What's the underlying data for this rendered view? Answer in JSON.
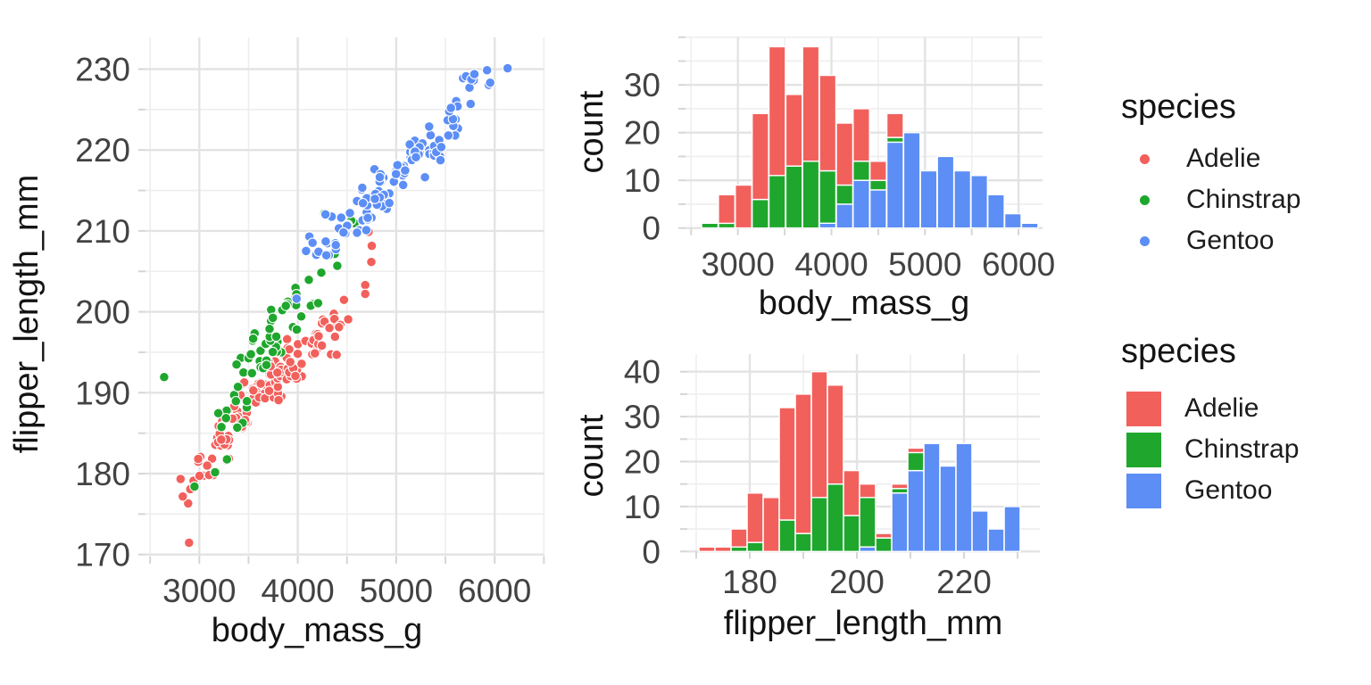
{
  "palette": {
    "adelie": "#F2605C",
    "chinstrap": "#1FA72D",
    "gentoo": "#5C8EF5",
    "grid_major": "#E3E3E3",
    "grid_minor": "#EEEEEE",
    "tick_mark": "#D6D6D6",
    "tick_text": "#424242",
    "title_text": "#131313",
    "background": "#FFFFFF",
    "bar_stroke": "#FFFFFF",
    "point_stroke": "#FFFFFF"
  },
  "legends": [
    {
      "title": "species",
      "marker": "point",
      "items": [
        {
          "label": "Adelie",
          "color": "#F2605C"
        },
        {
          "label": "Chinstrap",
          "color": "#1FA72D"
        },
        {
          "label": "Gentoo",
          "color": "#5C8EF5"
        }
      ]
    },
    {
      "title": "species",
      "marker": "square",
      "items": [
        {
          "label": "Adelie",
          "color": "#F2605C"
        },
        {
          "label": "Chinstrap",
          "color": "#1FA72D"
        },
        {
          "label": "Gentoo",
          "color": "#5C8EF5"
        }
      ]
    }
  ],
  "chart_data": [
    {
      "id": "scatter",
      "type": "scatter",
      "xlabel": "body_mass_g",
      "ylabel": "flipper_length_mm",
      "xlim": [
        2455,
        6500
      ],
      "ylim": [
        169.2,
        233.9
      ],
      "x_ticks": [
        3000,
        4000,
        5000,
        6000
      ],
      "x_minor_ticks": [
        2500,
        3500,
        4500,
        5500,
        6500
      ],
      "y_ticks": [
        170,
        180,
        190,
        200,
        210,
        220,
        230
      ],
      "y_minor_ticks": [
        175,
        185,
        195,
        205,
        215,
        225
      ],
      "grid": true,
      "legend_position": "right",
      "note": "points_grouped entries are [body_mass_g_bin_center, flipper_length_mm_bin_center, n_points]",
      "series": [
        {
          "name": "Adelie",
          "color": "#F2605C",
          "points_grouped": [
            [
              2880,
              172,
              1
            ],
            [
              2880,
              175,
              1
            ],
            [
              2880,
              178,
              4
            ],
            [
              3060,
              181,
              9
            ],
            [
              3240,
              181,
              2
            ],
            [
              3240,
              184,
              12
            ],
            [
              3240,
              187,
              4
            ],
            [
              3420,
              187,
              21
            ],
            [
              3420,
              190,
              5
            ],
            [
              3600,
              190,
              15
            ],
            [
              3780,
              190,
              11
            ],
            [
              3780,
              193,
              13
            ],
            [
              3960,
              193,
              15
            ],
            [
              3960,
              196,
              5
            ],
            [
              4140,
              196,
              13
            ],
            [
              4320,
              196,
              4
            ],
            [
              4320,
              199,
              7
            ],
            [
              4500,
              199,
              3
            ],
            [
              4500,
              202,
              1
            ],
            [
              4680,
              202,
              2
            ],
            [
              4680,
              205,
              1
            ],
            [
              4680,
              208,
              1
            ],
            [
              4680,
              211,
              1
            ]
          ]
        },
        {
          "name": "Chinstrap",
          "color": "#1FA72D",
          "points_grouped": [
            [
              2700,
              192,
              1
            ],
            [
              2880,
              178,
              1
            ],
            [
              3240,
              181,
              2
            ],
            [
              3240,
              187,
              4
            ],
            [
              3420,
              187,
              3
            ],
            [
              3420,
              190,
              4
            ],
            [
              3420,
              193,
              4
            ],
            [
              3600,
              193,
              7
            ],
            [
              3600,
              196,
              6
            ],
            [
              3780,
              196,
              9
            ],
            [
              3780,
              199,
              5
            ],
            [
              3960,
              199,
              3
            ],
            [
              3960,
              202,
              8
            ],
            [
              4140,
              202,
              3
            ],
            [
              4140,
              205,
              1
            ],
            [
              4320,
              205,
              2
            ],
            [
              4320,
              208,
              1
            ],
            [
              4320,
              211,
              1
            ],
            [
              4500,
              211,
              2
            ],
            [
              4680,
              211,
              1
            ]
          ]
        },
        {
          "name": "Gentoo",
          "color": "#5C8EF5",
          "points_grouped": [
            [
              3960,
              202,
              1
            ],
            [
              4140,
              208,
              5
            ],
            [
              4320,
              208,
              8
            ],
            [
              4320,
              211,
              2
            ],
            [
              4500,
              211,
              8
            ],
            [
              4680,
              211,
              8
            ],
            [
              4680,
              214,
              10
            ],
            [
              4860,
              214,
              14
            ],
            [
              4860,
              217,
              6
            ],
            [
              5040,
              217,
              12
            ],
            [
              5220,
              217,
              1
            ],
            [
              5220,
              220,
              14
            ],
            [
              5400,
              220,
              10
            ],
            [
              5400,
              223,
              2
            ],
            [
              5580,
              223,
              7
            ],
            [
              5580,
              226,
              4
            ],
            [
              5760,
              226,
              1
            ],
            [
              5760,
              229,
              6
            ],
            [
              5940,
              229,
              3
            ],
            [
              6120,
              229,
              1
            ]
          ]
        }
      ]
    },
    {
      "id": "hist_body_mass",
      "type": "bar",
      "subtype": "stacked_histogram",
      "xlabel": "body_mass_g",
      "ylabel": "count",
      "bin_width": 180,
      "bin_centers": [
        2700,
        2880,
        3060,
        3240,
        3420,
        3600,
        3780,
        3960,
        4140,
        4320,
        4500,
        4680,
        4860,
        5040,
        5220,
        5400,
        5580,
        5760,
        5940,
        6120
      ],
      "x_ticks": [
        3000,
        4000,
        5000,
        6000
      ],
      "x_minor_ticks": [
        2500,
        3500,
        4500,
        5500
      ],
      "y_ticks": [
        0,
        10,
        20,
        30
      ],
      "y_minor_ticks": [
        5,
        15,
        25,
        35,
        40
      ],
      "ylim": [
        0,
        39.9
      ],
      "stack_bottom_to_top": [
        "Gentoo",
        "Chinstrap",
        "Adelie"
      ],
      "series": [
        {
          "name": "Adelie",
          "color": "#F2605C",
          "counts": [
            0,
            6,
            9,
            18,
            27,
            15,
            24,
            20,
            13,
            11,
            4,
            5,
            0,
            0,
            0,
            0,
            0,
            0,
            0,
            0
          ]
        },
        {
          "name": "Chinstrap",
          "color": "#1FA72D",
          "counts": [
            1,
            1,
            0,
            6,
            11,
            13,
            14,
            11,
            4,
            4,
            2,
            1,
            0,
            0,
            0,
            0,
            0,
            0,
            0,
            0
          ]
        },
        {
          "name": "Gentoo",
          "color": "#5C8EF5",
          "counts": [
            0,
            0,
            0,
            0,
            0,
            0,
            0,
            1,
            5,
            10,
            8,
            18,
            20,
            12,
            15,
            12,
            11,
            7,
            3,
            1
          ]
        }
      ]
    },
    {
      "id": "hist_flipper_length",
      "type": "bar",
      "subtype": "stacked_histogram",
      "xlabel": "flipper_length_mm",
      "ylabel": "count",
      "bin_width": 3,
      "bin_centers": [
        172,
        175,
        178,
        181,
        184,
        187,
        190,
        193,
        196,
        199,
        202,
        205,
        208,
        211,
        214,
        217,
        220,
        223,
        226,
        229
      ],
      "x_ticks": [
        180,
        200,
        220
      ],
      "x_minor_ticks": [
        170,
        190,
        210,
        230
      ],
      "y_ticks": [
        0,
        10,
        20,
        30,
        40
      ],
      "y_minor_ticks": [
        5,
        15,
        25,
        35
      ],
      "ylim": [
        0,
        42
      ],
      "stack_bottom_to_top": [
        "Gentoo",
        "Chinstrap",
        "Adelie"
      ],
      "series": [
        {
          "name": "Adelie",
          "color": "#F2605C",
          "counts": [
            1,
            1,
            4,
            11,
            12,
            25,
            31,
            28,
            22,
            10,
            3,
            1,
            1,
            1,
            0,
            0,
            0,
            0,
            0,
            0
          ]
        },
        {
          "name": "Chinstrap",
          "color": "#1FA72D",
          "counts": [
            0,
            0,
            1,
            2,
            0,
            7,
            4,
            12,
            15,
            8,
            11,
            3,
            1,
            4,
            0,
            0,
            0,
            0,
            0,
            0
          ]
        },
        {
          "name": "Gentoo",
          "color": "#5C8EF5",
          "counts": [
            0,
            0,
            0,
            0,
            0,
            0,
            0,
            0,
            0,
            0,
            1,
            0,
            13,
            18,
            24,
            19,
            24,
            9,
            5,
            10
          ]
        }
      ]
    }
  ]
}
